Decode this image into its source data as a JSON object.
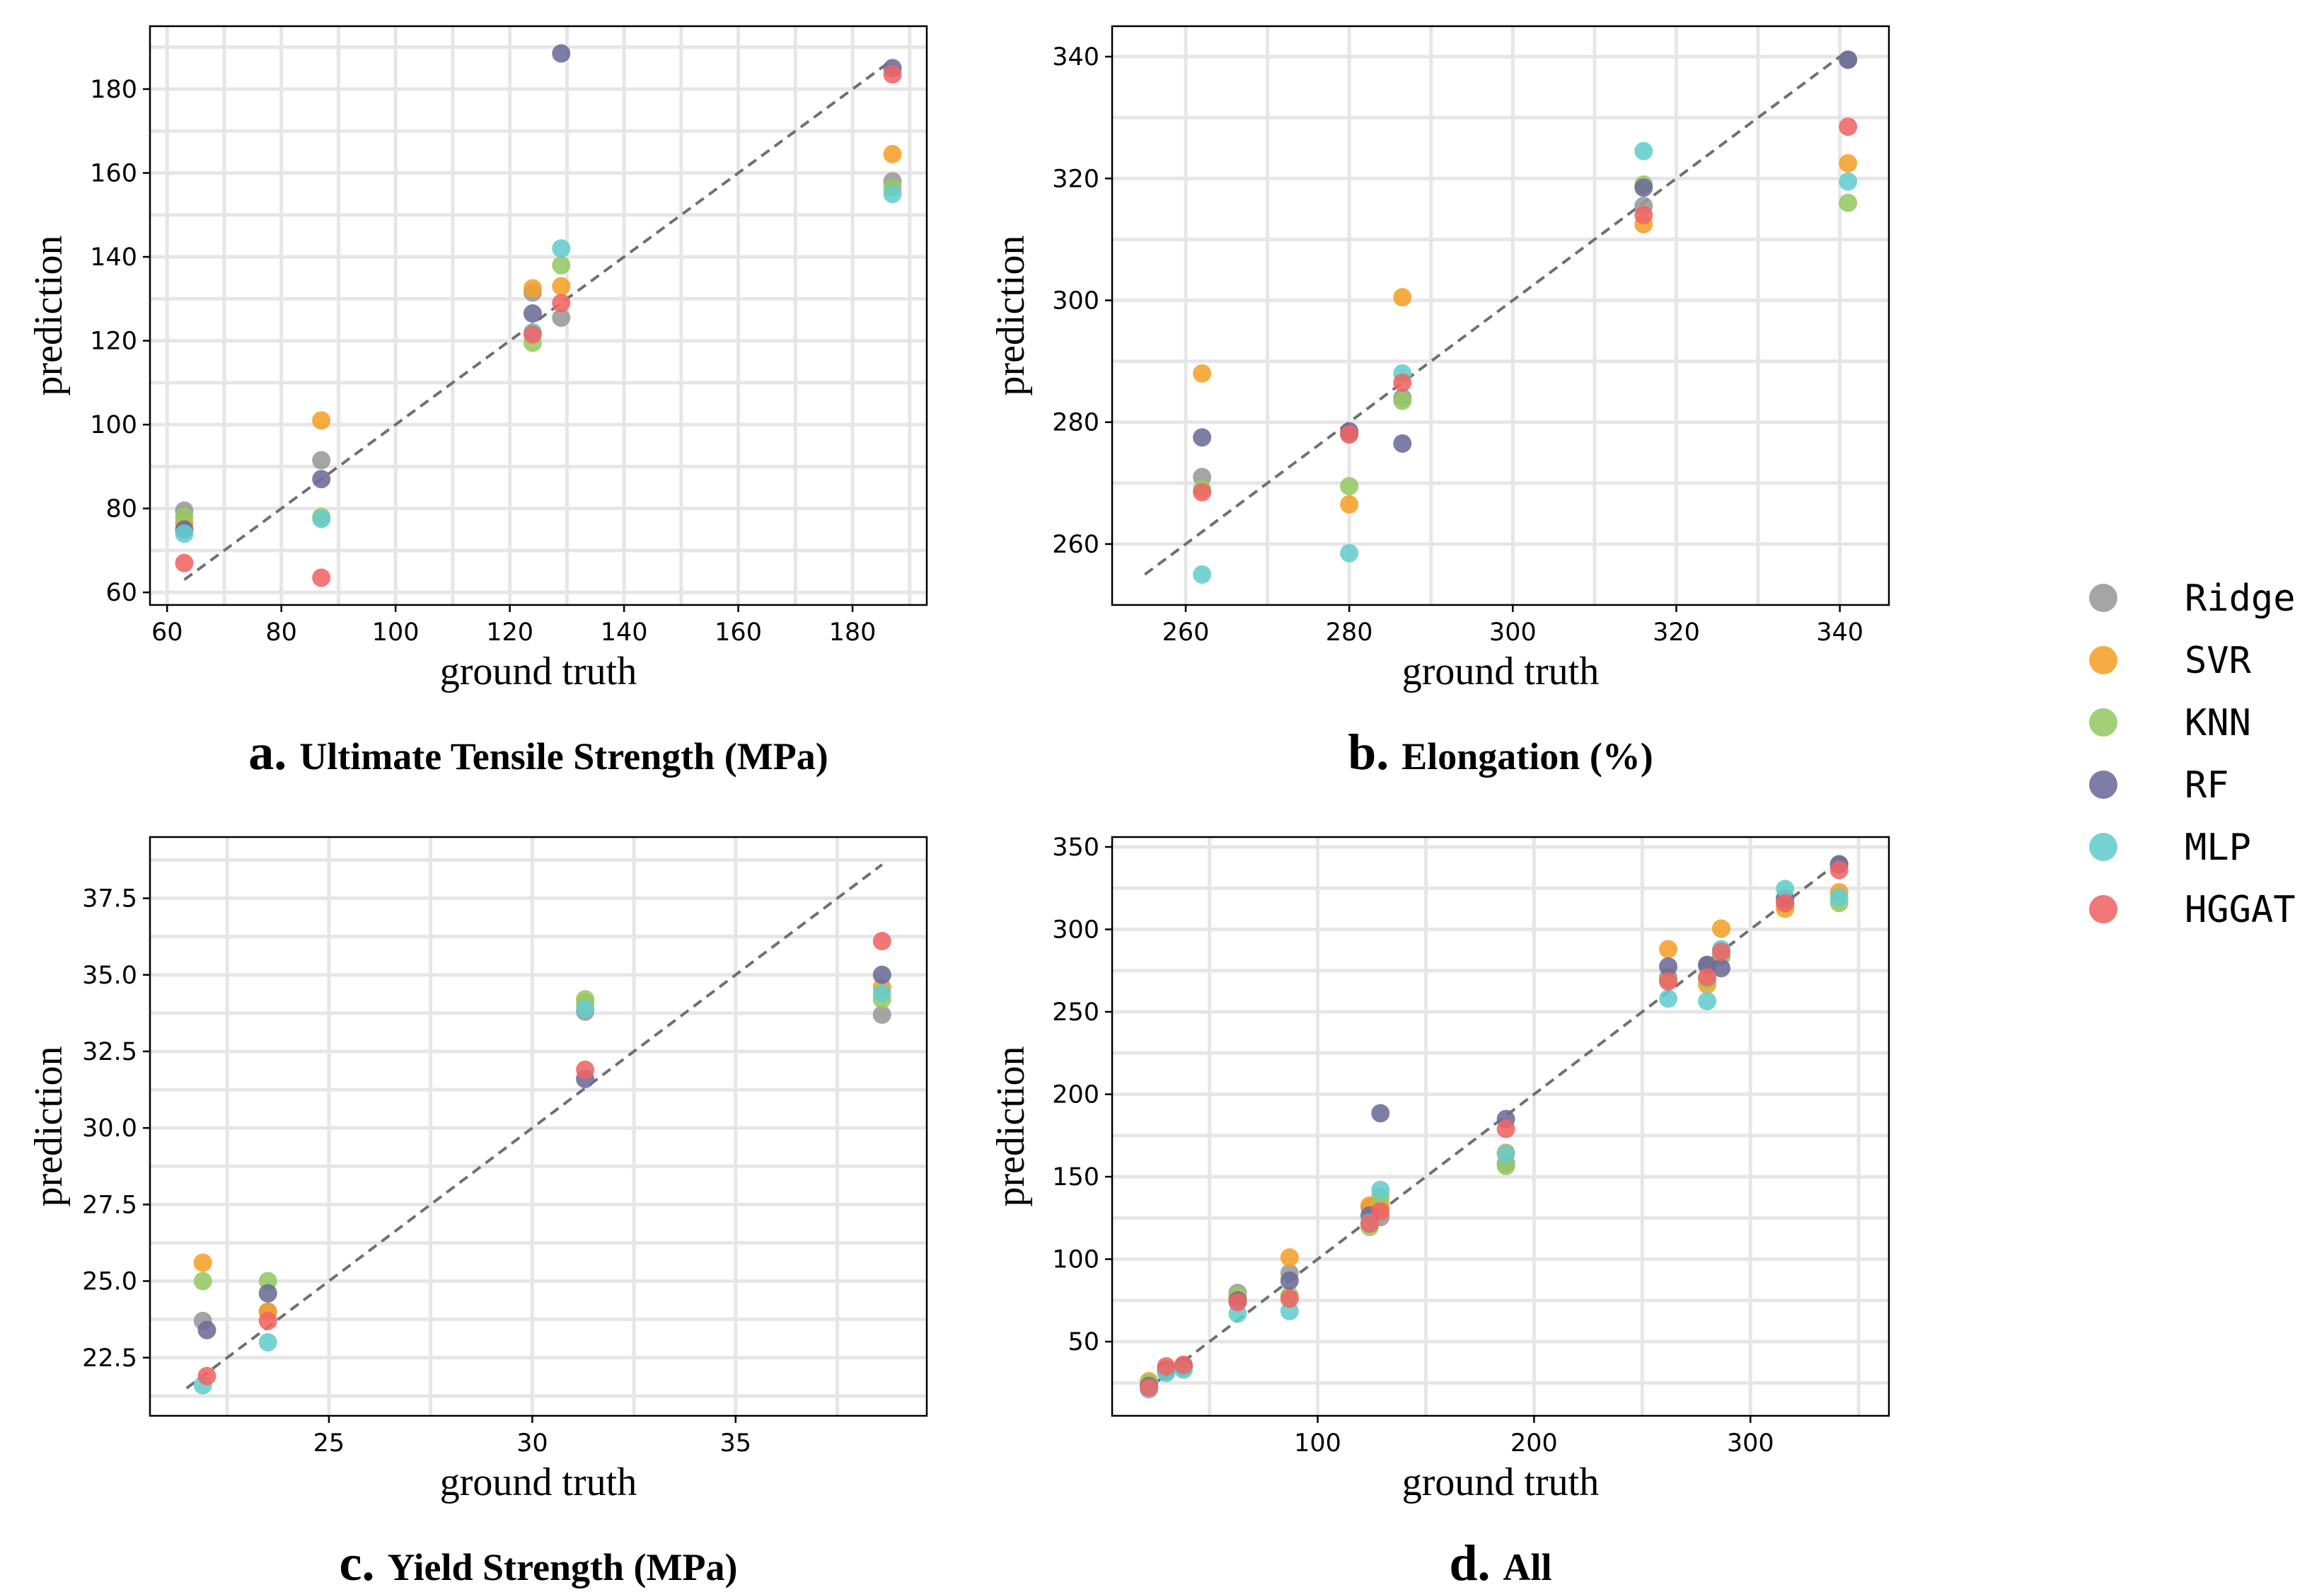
{
  "legend": [
    {
      "name": "Ridge",
      "color": "#999999"
    },
    {
      "name": "SVR",
      "color": "#F5A028"
    },
    {
      "name": "KNN",
      "color": "#96C864"
    },
    {
      "name": "RF",
      "color": "#6C6B99"
    },
    {
      "name": "MLP",
      "color": "#64CDCD"
    },
    {
      "name": "HGGAT",
      "color": "#F06464"
    }
  ],
  "chart_data": [
    {
      "type": "scatter",
      "id": "a",
      "caption_letter": "a.",
      "caption": "Ultimate Tensile Strength (MPa)",
      "xlabel": "ground truth",
      "ylabel": "prediction",
      "xlim": [
        57,
        193
      ],
      "ylim": [
        57,
        195
      ],
      "xticks": [
        60,
        80,
        100,
        120,
        140,
        160,
        180
      ],
      "xtick_labels": [
        "60",
        "80",
        "100",
        "120",
        "140",
        "160",
        "180"
      ],
      "yticks": [
        60,
        80,
        100,
        120,
        140,
        160,
        180
      ],
      "ytick_labels": [
        "60",
        "80",
        "100",
        "120",
        "140",
        "160",
        "180"
      ],
      "grid": true,
      "identity_line": [
        63,
        187
      ],
      "series": [
        {
          "name": "Ridge",
          "x": [
            63,
            87,
            124,
            129,
            187
          ],
          "y": [
            79.5,
            91.5,
            131.5,
            125.5,
            158
          ]
        },
        {
          "name": "SVR",
          "x": [
            63,
            87,
            124,
            129,
            187
          ],
          "y": [
            76.5,
            101,
            132.5,
            133,
            164.5
          ]
        },
        {
          "name": "KNN",
          "x": [
            63,
            87,
            124,
            129,
            187
          ],
          "y": [
            78,
            78,
            119.5,
            138,
            156.5
          ]
        },
        {
          "name": "RF",
          "x": [
            63,
            87,
            124,
            129,
            187
          ],
          "y": [
            75,
            87,
            126.5,
            188.5,
            185
          ]
        },
        {
          "name": "MLP",
          "x": [
            63,
            87,
            124,
            129,
            187
          ],
          "y": [
            74,
            77.5,
            122,
            142,
            155
          ]
        },
        {
          "name": "HGGAT",
          "x": [
            63,
            87,
            124,
            129,
            187
          ],
          "y": [
            67,
            63.5,
            121.5,
            129,
            183.5
          ]
        }
      ]
    },
    {
      "type": "scatter",
      "id": "b",
      "caption_letter": "b.",
      "caption": "Elongation (%)",
      "xlabel": "ground truth",
      "ylabel": "prediction",
      "xlim": [
        251,
        346
      ],
      "ylim": [
        250,
        345
      ],
      "xticks": [
        260,
        280,
        300,
        320,
        340
      ],
      "xtick_labels": [
        "260",
        "280",
        "300",
        "320",
        "340"
      ],
      "yticks": [
        260,
        280,
        300,
        320,
        340
      ],
      "ytick_labels": [
        "260",
        "280",
        "300",
        "320",
        "340"
      ],
      "grid": true,
      "identity_line": [
        255,
        341
      ],
      "series": [
        {
          "name": "Ridge",
          "x": [
            262,
            280,
            286.5,
            316,
            341
          ],
          "y": [
            271,
            278,
            284,
            315.5,
            339.5
          ]
        },
        {
          "name": "SVR",
          "x": [
            262,
            280,
            286.5,
            316,
            341
          ],
          "y": [
            288,
            266.5,
            300.5,
            312.5,
            322.5
          ]
        },
        {
          "name": "KNN",
          "x": [
            262,
            280,
            286.5,
            316,
            341
          ],
          "y": [
            269,
            269.5,
            283.5,
            319,
            316
          ]
        },
        {
          "name": "RF",
          "x": [
            262,
            280,
            286.5,
            316,
            341
          ],
          "y": [
            277.5,
            278.5,
            276.5,
            318.5,
            339.5
          ]
        },
        {
          "name": "MLP",
          "x": [
            262,
            280,
            286.5,
            316,
            341
          ],
          "y": [
            255,
            258.5,
            288,
            324.5,
            319.5
          ]
        },
        {
          "name": "HGGAT",
          "x": [
            262,
            280,
            286.5,
            316,
            341
          ],
          "y": [
            268.5,
            278,
            286.5,
            314,
            328.5
          ]
        }
      ]
    },
    {
      "type": "scatter",
      "id": "c",
      "caption_letter": "c.",
      "caption": "Yield Strength (MPa)",
      "xlabel": "ground truth",
      "ylabel": "prediction",
      "xlim": [
        20.6,
        39.7
      ],
      "ylim": [
        20.6,
        39.5
      ],
      "xticks": [
        25,
        30,
        35
      ],
      "xtick_labels": [
        "25",
        "30",
        "35"
      ],
      "yticks": [
        22.5,
        25.0,
        27.5,
        30.0,
        32.5,
        35.0,
        37.5
      ],
      "ytick_labels": [
        "22.5",
        "25.0",
        "27.5",
        "30.0",
        "32.5",
        "35.0",
        "37.5"
      ],
      "grid": true,
      "identity_line": [
        21.5,
        38.6
      ],
      "series": [
        {
          "name": "Ridge",
          "x": [
            21.9,
            23.5,
            31.3,
            38.6
          ],
          "y": [
            23.7,
            24.0,
            33.8,
            33.7
          ]
        },
        {
          "name": "SVR",
          "x": [
            21.9,
            23.5,
            31.3,
            38.6
          ],
          "y": [
            25.6,
            24.0,
            34.1,
            34.6
          ]
        },
        {
          "name": "KNN",
          "x": [
            21.9,
            23.5,
            31.3,
            38.6
          ],
          "y": [
            25.0,
            25.0,
            34.2,
            34.2
          ]
        },
        {
          "name": "RF",
          "x": [
            22.0,
            23.5,
            31.3,
            38.6
          ],
          "y": [
            23.4,
            24.6,
            31.6,
            35.0
          ]
        },
        {
          "name": "MLP",
          "x": [
            21.9,
            23.5,
            31.3,
            38.6
          ],
          "y": [
            21.6,
            23.0,
            33.9,
            34.4
          ]
        },
        {
          "name": "HGGAT",
          "x": [
            22.0,
            23.5,
            31.3,
            38.6
          ],
          "y": [
            21.9,
            23.7,
            31.9,
            36.1
          ]
        }
      ]
    },
    {
      "type": "scatter",
      "id": "d",
      "caption_letter": "d.",
      "caption": "All",
      "xlabel": "ground truth",
      "ylabel": "prediction",
      "xlim": [
        5,
        364
      ],
      "ylim": [
        5,
        356
      ],
      "xticks": [
        100,
        200,
        300
      ],
      "xtick_labels": [
        "100",
        "200",
        "300"
      ],
      "yticks": [
        50,
        100,
        150,
        200,
        250,
        300,
        350
      ],
      "ytick_labels": [
        "50",
        "100",
        "150",
        "200",
        "250",
        "300",
        "350"
      ],
      "grid": true,
      "identity_line": [
        20,
        342
      ],
      "series": [
        {
          "name": "Ridge",
          "x": [
            22,
            30,
            38,
            63,
            87,
            124,
            129,
            187,
            262,
            280,
            286.5,
            316,
            341
          ],
          "y": [
            24,
            32,
            34,
            79.5,
            91.5,
            131.5,
            125.5,
            158,
            271,
            278,
            284,
            315.5,
            339.5
          ]
        },
        {
          "name": "SVR",
          "x": [
            22,
            30,
            38,
            63,
            87,
            124,
            129,
            187,
            262,
            280,
            286.5,
            316,
            341
          ],
          "y": [
            26,
            33,
            35,
            76.5,
            101,
            132.5,
            133,
            164.5,
            288,
            266.5,
            300.5,
            312.5,
            322.5
          ]
        },
        {
          "name": "KNN",
          "x": [
            22,
            30,
            38,
            63,
            87,
            124,
            129,
            187,
            262,
            280,
            286.5,
            316,
            341
          ],
          "y": [
            25,
            33,
            34,
            78,
            78,
            119.5,
            138,
            156.5,
            269,
            269.5,
            283.5,
            319,
            316
          ]
        },
        {
          "name": "RF",
          "x": [
            22,
            30,
            38,
            63,
            87,
            124,
            129,
            187,
            262,
            280,
            286.5,
            316,
            341
          ],
          "y": [
            23,
            33,
            35,
            75,
            87,
            126.5,
            188.5,
            185,
            277.5,
            278.5,
            276.5,
            318.5,
            339.5
          ]
        },
        {
          "name": "MLP",
          "x": [
            22,
            30,
            38,
            63,
            87,
            124,
            129,
            187,
            262,
            280,
            286.5,
            316,
            341
          ],
          "y": [
            21,
            31,
            33,
            67,
            68.5,
            122,
            142,
            164,
            258,
            256.5,
            288,
            324.5,
            319.5
          ]
        },
        {
          "name": "HGGAT",
          "x": [
            22,
            30,
            38,
            63,
            87,
            124,
            129,
            187,
            262,
            280,
            286.5,
            316,
            341
          ],
          "y": [
            22,
            35,
            36,
            74,
            76,
            121.5,
            129,
            179,
            268.5,
            271,
            286.5,
            316,
            336
          ]
        }
      ]
    }
  ]
}
